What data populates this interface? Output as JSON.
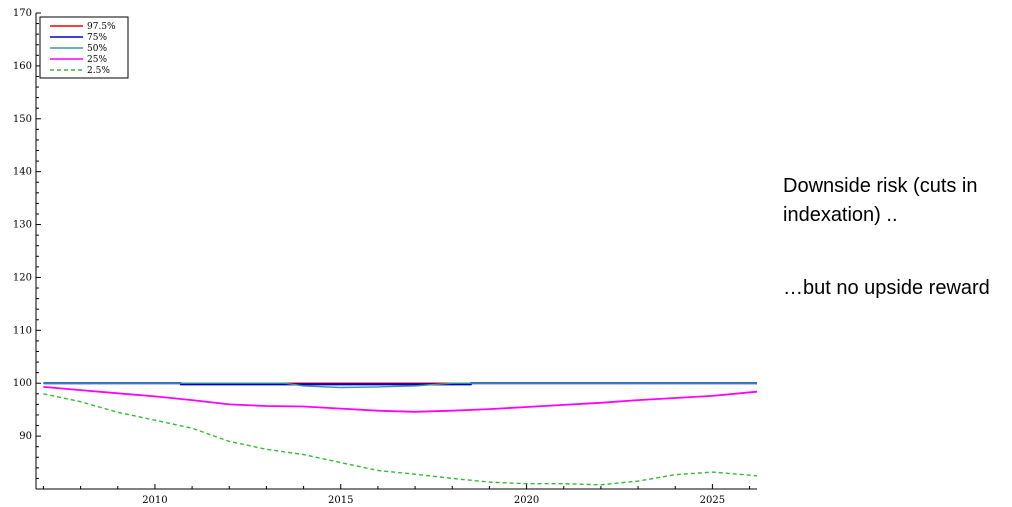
{
  "chart_data": {
    "type": "line",
    "title": "",
    "xlabel": "",
    "ylabel": "",
    "xlim": [
      2006.8,
      2026.2
    ],
    "ylim": [
      80,
      170
    ],
    "x_ticks": [
      2010,
      2015,
      2020,
      2025
    ],
    "y_ticks": [
      90,
      100,
      110,
      120,
      130,
      140,
      150,
      160,
      170
    ],
    "grid": false,
    "legend_position": "top-left",
    "series": [
      {
        "name": "97.5%",
        "color": "#ff0000",
        "dashed": false,
        "x": [
          2007,
          2026.2
        ],
        "y": [
          100,
          100
        ]
      },
      {
        "name": "75%",
        "color": "#0000cc",
        "dashed": false,
        "x": [
          2007,
          2010.7,
          2010.7,
          2018.5,
          2018.5,
          2026.2
        ],
        "y": [
          100,
          100,
          99.8,
          99.8,
          100,
          100
        ]
      },
      {
        "name": "50%",
        "color": "#3a9a9a",
        "dashed": false,
        "x": [
          2007,
          2013.5,
          2014,
          2015,
          2016,
          2017,
          2018,
          2026.2
        ],
        "y": [
          100,
          100,
          99.5,
          99.2,
          99.3,
          99.5,
          100,
          100
        ]
      },
      {
        "name": "25%",
        "color": "#ff00ff",
        "dashed": false,
        "x": [
          2007,
          2008,
          2009,
          2010,
          2011,
          2012,
          2013,
          2014,
          2015,
          2016,
          2017,
          2018,
          2019,
          2020,
          2021,
          2022,
          2023,
          2024,
          2025,
          2026.2
        ],
        "y": [
          99.3,
          98.7,
          98.1,
          97.5,
          96.8,
          96.0,
          95.7,
          95.6,
          95.2,
          94.8,
          94.6,
          94.8,
          95.1,
          95.5,
          95.9,
          96.3,
          96.8,
          97.2,
          97.6,
          98.4
        ]
      },
      {
        "name": "2.5%",
        "color": "#33bb33",
        "dashed": true,
        "x": [
          2007,
          2008,
          2009,
          2010,
          2011,
          2012,
          2013,
          2014,
          2015,
          2016,
          2017,
          2018,
          2019,
          2020,
          2021,
          2022,
          2023,
          2024,
          2025,
          2026.2
        ],
        "y": [
          98,
          96.5,
          94.5,
          93.0,
          91.5,
          89.0,
          87.5,
          86.5,
          85.0,
          83.5,
          82.8,
          82.0,
          81.3,
          81.0,
          81.0,
          80.8,
          81.5,
          82.7,
          83.2,
          82.5
        ]
      }
    ]
  },
  "annotations": {
    "downside": "Downside risk (cuts in indexation) ..",
    "upside": "…but no upside reward"
  }
}
